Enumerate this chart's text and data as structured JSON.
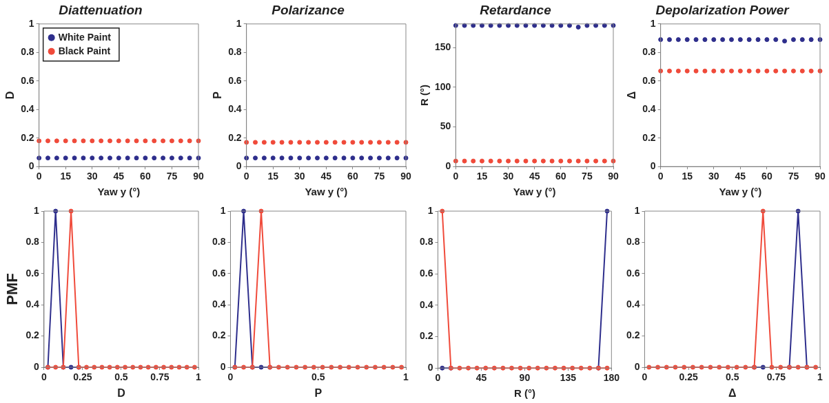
{
  "chart_data": [
    {
      "type": "scatter",
      "title": "Diattenuation",
      "xlabel": "Yaw y (°)",
      "ylabel": "D",
      "x": [
        0,
        5,
        10,
        15,
        20,
        25,
        30,
        35,
        40,
        45,
        50,
        55,
        60,
        65,
        70,
        75,
        80,
        85,
        90
      ],
      "xlim": [
        0,
        90
      ],
      "xticks": [
        0,
        15,
        30,
        45,
        60,
        75,
        90
      ],
      "ylim": [
        0,
        1
      ],
      "yticks": [
        0,
        0.2,
        0.4,
        0.6,
        0.8,
        1
      ],
      "marker": "circle",
      "legend": "top left",
      "grid": false,
      "series": [
        {
          "name": "White Paint",
          "color": "#2e2e8c",
          "values": [
            0.06,
            0.06,
            0.06,
            0.06,
            0.06,
            0.06,
            0.06,
            0.06,
            0.06,
            0.06,
            0.06,
            0.06,
            0.06,
            0.06,
            0.06,
            0.06,
            0.06,
            0.06,
            0.06
          ]
        },
        {
          "name": "Black Paint",
          "color": "#f04a3a",
          "values": [
            0.18,
            0.18,
            0.18,
            0.18,
            0.18,
            0.18,
            0.18,
            0.18,
            0.18,
            0.18,
            0.18,
            0.18,
            0.18,
            0.18,
            0.18,
            0.18,
            0.18,
            0.18,
            0.18
          ]
        }
      ]
    },
    {
      "type": "scatter",
      "title": "Polarizance",
      "xlabel": "Yaw y (°)",
      "ylabel": "P",
      "x": [
        0,
        5,
        10,
        15,
        20,
        25,
        30,
        35,
        40,
        45,
        50,
        55,
        60,
        65,
        70,
        75,
        80,
        85,
        90
      ],
      "xlim": [
        0,
        90
      ],
      "xticks": [
        0,
        15,
        30,
        45,
        60,
        75,
        90
      ],
      "ylim": [
        0,
        1
      ],
      "yticks": [
        0,
        0.2,
        0.4,
        0.6,
        0.8,
        1
      ],
      "marker": "circle",
      "grid": false,
      "series": [
        {
          "color": "#2e2e8c",
          "values": [
            0.06,
            0.06,
            0.06,
            0.06,
            0.06,
            0.06,
            0.06,
            0.06,
            0.06,
            0.06,
            0.06,
            0.06,
            0.06,
            0.06,
            0.06,
            0.06,
            0.06,
            0.06,
            0.06
          ]
        },
        {
          "color": "#f04a3a",
          "values": [
            0.17,
            0.17,
            0.17,
            0.17,
            0.17,
            0.17,
            0.17,
            0.17,
            0.17,
            0.17,
            0.17,
            0.17,
            0.17,
            0.17,
            0.17,
            0.17,
            0.17,
            0.17,
            0.17
          ]
        }
      ]
    },
    {
      "type": "scatter",
      "title": "Retardance",
      "xlabel": "Yaw y (°)",
      "ylabel": "R (°)",
      "x": [
        0,
        5,
        10,
        15,
        20,
        25,
        30,
        35,
        40,
        45,
        50,
        55,
        60,
        65,
        70,
        75,
        80,
        85,
        90
      ],
      "xlim": [
        0,
        90
      ],
      "xticks": [
        0,
        15,
        30,
        45,
        60,
        75,
        90
      ],
      "ylim": [
        0,
        180
      ],
      "yticks": [
        0,
        50,
        100,
        150
      ],
      "marker": "circle",
      "grid": false,
      "series": [
        {
          "color": "#2e2e8c",
          "values": [
            178,
            178,
            178,
            178,
            178,
            178,
            178,
            178,
            178,
            178,
            178,
            178,
            178,
            178,
            176,
            178,
            178,
            178,
            178
          ]
        },
        {
          "color": "#f04a3a",
          "values": [
            7,
            7,
            7,
            7,
            7,
            7,
            7,
            7,
            7,
            7,
            7,
            7,
            7,
            7,
            7,
            7,
            7,
            7,
            7
          ]
        }
      ]
    },
    {
      "type": "scatter",
      "title": "Depolarization Power",
      "xlabel": "Yaw y (°)",
      "ylabel": "Δ",
      "x": [
        0,
        5,
        10,
        15,
        20,
        25,
        30,
        35,
        40,
        45,
        50,
        55,
        60,
        65,
        70,
        75,
        80,
        85,
        90
      ],
      "xlim": [
        0,
        90
      ],
      "xticks": [
        0,
        15,
        30,
        45,
        60,
        75,
        90
      ],
      "ylim": [
        0,
        1
      ],
      "yticks": [
        0,
        0.2,
        0.4,
        0.6,
        0.8,
        1
      ],
      "marker": "circle",
      "grid": false,
      "series": [
        {
          "color": "#2e2e8c",
          "values": [
            0.89,
            0.89,
            0.89,
            0.89,
            0.89,
            0.89,
            0.89,
            0.89,
            0.89,
            0.89,
            0.89,
            0.89,
            0.89,
            0.89,
            0.88,
            0.89,
            0.89,
            0.89,
            0.89
          ]
        },
        {
          "color": "#f04a3a",
          "values": [
            0.67,
            0.67,
            0.67,
            0.67,
            0.67,
            0.67,
            0.67,
            0.67,
            0.67,
            0.67,
            0.67,
            0.67,
            0.67,
            0.67,
            0.67,
            0.67,
            0.67,
            0.67,
            0.67
          ]
        }
      ]
    },
    {
      "type": "line",
      "xlabel": "D",
      "ylabel": "PMF",
      "x": [
        0.025,
        0.075,
        0.125,
        0.175,
        0.225,
        0.275,
        0.325,
        0.375,
        0.425,
        0.475,
        0.525,
        0.575,
        0.625,
        0.675,
        0.725,
        0.775,
        0.825,
        0.875,
        0.925,
        0.975
      ],
      "xlim": [
        0,
        1
      ],
      "xticks": [
        0,
        0.25,
        0.5,
        0.75,
        1
      ],
      "ylim": [
        0,
        1
      ],
      "yticks": [
        0,
        0.2,
        0.4,
        0.6,
        0.8,
        1
      ],
      "marker": "circle",
      "line_style": "solid",
      "grid": false,
      "series": [
        {
          "color": "#2e2e8c",
          "values": [
            0,
            1,
            0,
            0,
            0,
            null,
            null,
            null,
            null,
            null,
            null,
            null,
            null,
            null,
            null,
            null,
            null,
            null,
            null,
            null
          ]
        },
        {
          "color": "#f04a3a",
          "values": [
            0,
            0,
            0,
            1,
            0,
            0,
            0,
            0,
            0,
            0,
            0,
            0,
            0,
            0,
            0,
            0,
            0,
            0,
            0,
            0
          ]
        }
      ]
    },
    {
      "type": "line",
      "xlabel": "P",
      "x": [
        0.025,
        0.075,
        0.125,
        0.175,
        0.225,
        0.275,
        0.325,
        0.375,
        0.425,
        0.475,
        0.525,
        0.575,
        0.625,
        0.675,
        0.725,
        0.775,
        0.825,
        0.875,
        0.925,
        0.975
      ],
      "xlim": [
        0,
        1
      ],
      "xticks": [
        0,
        0.5,
        1
      ],
      "ylim": [
        0,
        1
      ],
      "yticks": [
        0,
        0.2,
        0.4,
        0.6,
        0.8,
        1
      ],
      "marker": "circle",
      "line_style": "solid",
      "grid": false,
      "series": [
        {
          "color": "#2e2e8c",
          "values": [
            0,
            1,
            0,
            0,
            0,
            null,
            null,
            null,
            null,
            null,
            null,
            null,
            null,
            null,
            null,
            null,
            null,
            null,
            null,
            null
          ]
        },
        {
          "color": "#f04a3a",
          "values": [
            0,
            0,
            0,
            1,
            0,
            0,
            0,
            0,
            0,
            0,
            0,
            0,
            0,
            0,
            0,
            0,
            0,
            0,
            0,
            0
          ]
        }
      ]
    },
    {
      "type": "line",
      "xlabel": "R (°)",
      "x": [
        4.5,
        13.5,
        22.5,
        31.5,
        40.5,
        49.5,
        58.5,
        67.5,
        76.5,
        85.5,
        94.5,
        103.5,
        112.5,
        121.5,
        130.5,
        139.5,
        148.5,
        157.5,
        166.5,
        175.5
      ],
      "xlim": [
        0,
        180
      ],
      "xticks": [
        0,
        45,
        90,
        135,
        180
      ],
      "ylim": [
        0,
        1
      ],
      "yticks": [
        0,
        0.2,
        0.4,
        0.6,
        0.8,
        1
      ],
      "marker": "circle",
      "line_style": "solid",
      "grid": false,
      "series": [
        {
          "color": "#2e2e8c",
          "values": [
            0,
            0,
            null,
            null,
            null,
            null,
            null,
            null,
            null,
            null,
            null,
            null,
            null,
            null,
            null,
            null,
            null,
            null,
            0,
            1
          ]
        },
        {
          "color": "#f04a3a",
          "values": [
            1,
            0,
            0,
            0,
            0,
            0,
            0,
            0,
            0,
            0,
            0,
            0,
            0,
            0,
            0,
            0,
            0,
            0,
            0,
            0
          ]
        }
      ]
    },
    {
      "type": "line",
      "xlabel": "Δ",
      "x": [
        0.025,
        0.075,
        0.125,
        0.175,
        0.225,
        0.275,
        0.325,
        0.375,
        0.425,
        0.475,
        0.525,
        0.575,
        0.625,
        0.675,
        0.725,
        0.775,
        0.825,
        0.875,
        0.925,
        0.975
      ],
      "xlim": [
        0,
        1
      ],
      "xticks": [
        0,
        0.25,
        0.5,
        0.75,
        1
      ],
      "ylim": [
        0,
        1
      ],
      "yticks": [
        0,
        0.2,
        0.4,
        0.6,
        0.8,
        1
      ],
      "marker": "circle",
      "line_style": "solid",
      "grid": false,
      "series": [
        {
          "color": "#2e2e8c",
          "values": [
            null,
            null,
            null,
            null,
            null,
            null,
            null,
            null,
            null,
            null,
            null,
            null,
            0,
            0,
            null,
            null,
            0,
            1,
            0,
            null
          ]
        },
        {
          "color": "#f04a3a",
          "values": [
            0,
            0,
            0,
            0,
            0,
            0,
            0,
            0,
            0,
            0,
            0,
            0,
            0,
            1,
            0,
            0,
            0,
            0,
            0,
            0
          ]
        }
      ]
    }
  ]
}
